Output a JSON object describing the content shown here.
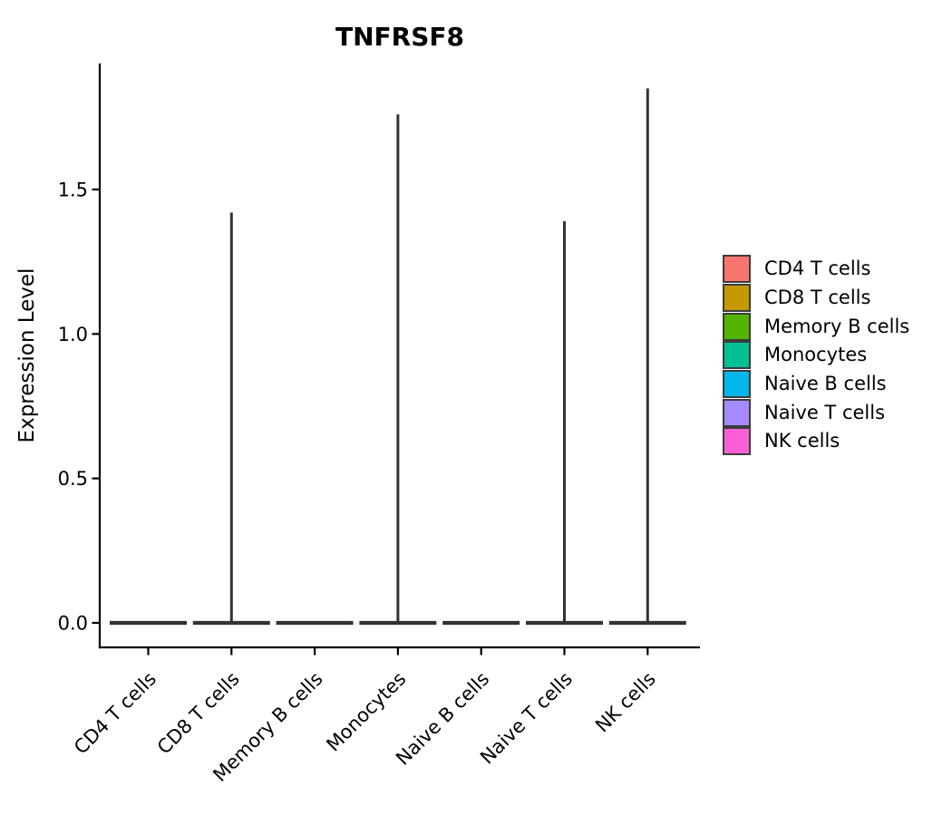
{
  "chart_data": {
    "type": "violin",
    "title": "TNFRSF8",
    "xlabel": "",
    "ylabel": "Expression Level",
    "ylim": [
      0,
      1.9
    ],
    "grid": false,
    "legend_position": "right",
    "yticks": [
      {
        "label": "0.0",
        "value": 0.0
      },
      {
        "label": "0.5",
        "value": 0.5
      },
      {
        "label": "1.0",
        "value": 1.0
      },
      {
        "label": "1.5",
        "value": 1.5
      }
    ],
    "categories": [
      "CD4 T cells",
      "CD8 T cells",
      "Memory B cells",
      "Monocytes",
      "Naive B cells",
      "Naive T cells",
      "NK cells"
    ],
    "violins": [
      {
        "label": "CD4 T cells",
        "color": "#F8766D",
        "baseline": 0.0,
        "max_expression": 0.0,
        "has_spike": false
      },
      {
        "label": "CD8 T cells",
        "color": "#C49A00",
        "baseline": 0.0,
        "max_expression": 1.42,
        "has_spike": true
      },
      {
        "label": "Memory B cells",
        "color": "#53B400",
        "baseline": 0.0,
        "max_expression": 0.0,
        "has_spike": false
      },
      {
        "label": "Monocytes",
        "color": "#00C094",
        "baseline": 0.0,
        "max_expression": 1.76,
        "has_spike": true
      },
      {
        "label": "Naive B cells",
        "color": "#00B6EB",
        "baseline": 0.0,
        "max_expression": 0.0,
        "has_spike": false
      },
      {
        "label": "Naive T cells",
        "color": "#A58AFF",
        "baseline": 0.0,
        "max_expression": 1.39,
        "has_spike": true
      },
      {
        "label": "NK cells",
        "color": "#FB61D7",
        "baseline": 0.0,
        "max_expression": 1.85,
        "has_spike": true
      }
    ],
    "colors": {
      "axis": "#000000",
      "text": "#000000",
      "violin_outline": "#333333"
    }
  }
}
